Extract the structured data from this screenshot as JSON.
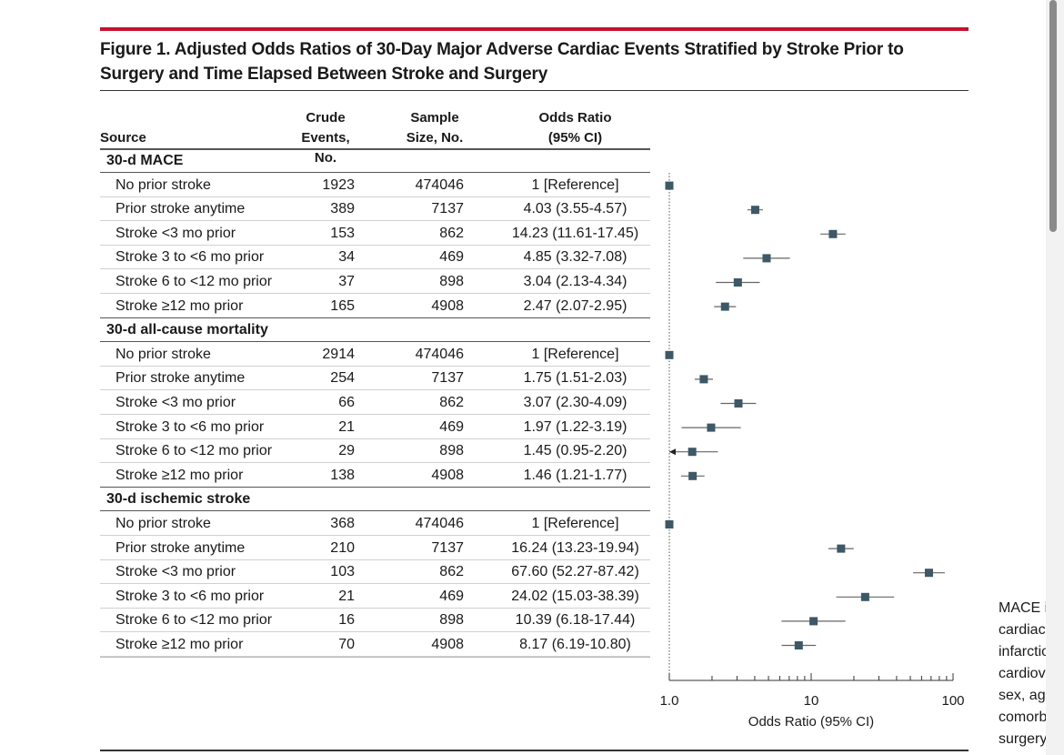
{
  "figure": {
    "title": "Figure 1. Adjusted Odds Ratios of 30-Day Major Adverse Cardiac Events Stratified by Stroke Prior to Surgery and Time Elapsed Between Stroke and Surgery"
  },
  "table_headers": {
    "source": "Source",
    "events_l1": "Crude",
    "events_l2": "Events, No.",
    "sample_l1": "Sample",
    "sample_l2": "Size, No.",
    "or_l1": "Odds Ratio",
    "or_l2": "(95% CI)"
  },
  "side_note": [
    "MACE inc",
    "cardiac ev",
    "infarction",
    "cardiovas",
    "sex, age,",
    "comorbic",
    "surgery g"
  ],
  "colors": {
    "marker": "#3d5866",
    "ci_line": "#666666",
    "accent_red": "#c8102e"
  },
  "chart_data": {
    "type": "forest",
    "xlabel": "Odds Ratio (95% CI)",
    "xscale": "log",
    "xlim": [
      1.0,
      100
    ],
    "xticks": [
      1.0,
      10,
      100
    ],
    "xtick_labels": [
      "1.0",
      "10",
      "100"
    ],
    "reference_line": 1.0,
    "groups": [
      {
        "name": "30-d MACE",
        "rows": [
          {
            "label": "No prior stroke",
            "events": "1923",
            "sample": "474046",
            "or_text": "1 [Reference]",
            "or": 1,
            "lo": 1,
            "hi": 1
          },
          {
            "label": "Prior stroke anytime",
            "events": "389",
            "sample": "7137",
            "or_text": "4.03 (3.55-4.57)",
            "or": 4.03,
            "lo": 3.55,
            "hi": 4.57
          },
          {
            "label": "Stroke <3 mo prior",
            "events": "153",
            "sample": "862",
            "or_text": "14.23 (11.61-17.45)",
            "or": 14.23,
            "lo": 11.61,
            "hi": 17.45
          },
          {
            "label": "Stroke 3 to <6 mo prior",
            "events": "34",
            "sample": "469",
            "or_text": "4.85 (3.32-7.08)",
            "or": 4.85,
            "lo": 3.32,
            "hi": 7.08
          },
          {
            "label": "Stroke 6 to <12 mo prior",
            "events": "37",
            "sample": "898",
            "or_text": "3.04 (2.13-4.34)",
            "or": 3.04,
            "lo": 2.13,
            "hi": 4.34
          },
          {
            "label": "Stroke ≥12 mo prior",
            "events": "165",
            "sample": "4908",
            "or_text": "2.47 (2.07-2.95)",
            "or": 2.47,
            "lo": 2.07,
            "hi": 2.95
          }
        ]
      },
      {
        "name": "30-d all-cause mortality",
        "rows": [
          {
            "label": "No prior stroke",
            "events": "2914",
            "sample": "474046",
            "or_text": "1 [Reference]",
            "or": 1,
            "lo": 1,
            "hi": 1
          },
          {
            "label": "Prior stroke anytime",
            "events": "254",
            "sample": "7137",
            "or_text": "1.75 (1.51-2.03)",
            "or": 1.75,
            "lo": 1.51,
            "hi": 2.03
          },
          {
            "label": "Stroke <3 mo prior",
            "events": "66",
            "sample": "862",
            "or_text": "3.07 (2.30-4.09)",
            "or": 3.07,
            "lo": 2.3,
            "hi": 4.09
          },
          {
            "label": "Stroke 3 to <6 mo prior",
            "events": "21",
            "sample": "469",
            "or_text": "1.97 (1.22-3.19)",
            "or": 1.97,
            "lo": 1.22,
            "hi": 3.19
          },
          {
            "label": "Stroke 6 to <12 mo prior",
            "events": "29",
            "sample": "898",
            "or_text": "1.45 (0.95-2.20)",
            "or": 1.45,
            "lo": 0.95,
            "hi": 2.2
          },
          {
            "label": "Stroke ≥12 mo prior",
            "events": "138",
            "sample": "4908",
            "or_text": "1.46 (1.21-1.77)",
            "or": 1.46,
            "lo": 1.21,
            "hi": 1.77
          }
        ]
      },
      {
        "name": "30-d ischemic stroke",
        "rows": [
          {
            "label": "No prior stroke",
            "events": "368",
            "sample": "474046",
            "or_text": "1 [Reference]",
            "or": 1,
            "lo": 1,
            "hi": 1
          },
          {
            "label": "Prior stroke anytime",
            "events": "210",
            "sample": "7137",
            "or_text": "16.24 (13.23-19.94)",
            "or": 16.24,
            "lo": 13.23,
            "hi": 19.94
          },
          {
            "label": "Stroke <3 mo prior",
            "events": "103",
            "sample": "862",
            "or_text": "67.60 (52.27-87.42)",
            "or": 67.6,
            "lo": 52.27,
            "hi": 87.42
          },
          {
            "label": "Stroke 3 to <6 mo prior",
            "events": "21",
            "sample": "469",
            "or_text": "24.02 (15.03-38.39)",
            "or": 24.02,
            "lo": 15.03,
            "hi": 38.39
          },
          {
            "label": "Stroke 6 to <12 mo prior",
            "events": "16",
            "sample": "898",
            "or_text": "10.39 (6.18-17.44)",
            "or": 10.39,
            "lo": 6.18,
            "hi": 17.44
          },
          {
            "label": "Stroke ≥12 mo prior",
            "events": "70",
            "sample": "4908",
            "or_text": "8.17 (6.19-10.80)",
            "or": 8.17,
            "lo": 6.19,
            "hi": 10.8
          }
        ]
      }
    ]
  }
}
